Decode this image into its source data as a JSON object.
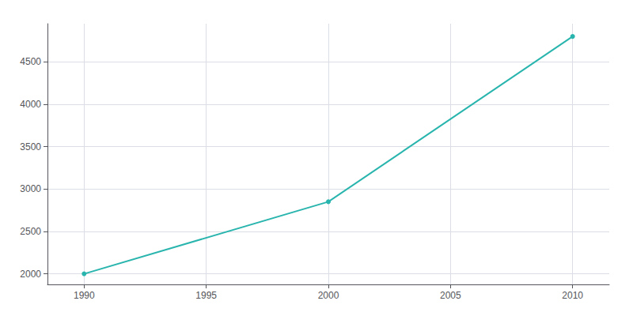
{
  "chart_data": {
    "type": "line",
    "x": [
      1990,
      2000,
      2010
    ],
    "values": [
      2000,
      2850,
      4800
    ],
    "color": "#29b5ae",
    "marker": "circle",
    "xlim": [
      1988.5,
      2011.5
    ],
    "xticks": [
      1990,
      1995,
      2000,
      2005,
      2010
    ],
    "ylim": [
      1875,
      4950
    ],
    "yticks": [
      2000,
      2500,
      3000,
      3500,
      4000,
      4500
    ],
    "grid": true
  }
}
